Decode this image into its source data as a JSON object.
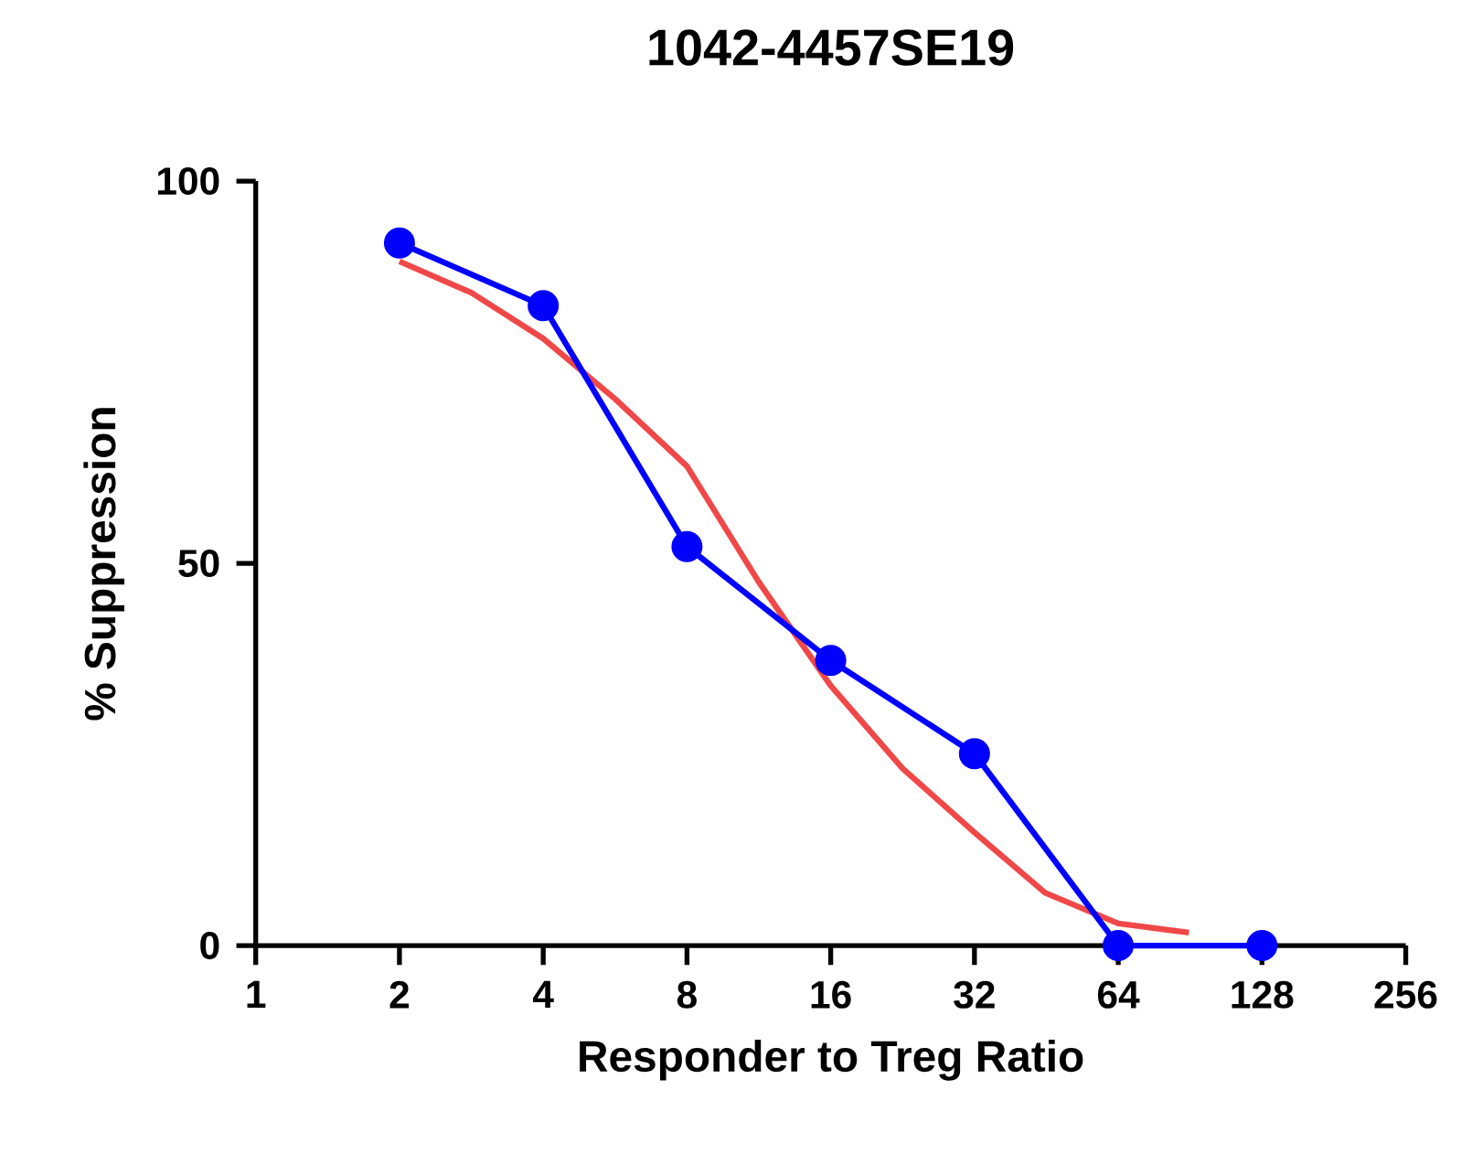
{
  "chart_data": {
    "type": "line",
    "title": "1042-4457SE19",
    "xlabel": "Responder to Treg Ratio",
    "ylabel": "% Suppression",
    "log": "x",
    "xlim": [
      1,
      256
    ],
    "xticks": [
      1,
      2,
      4,
      8,
      16,
      32,
      64,
      128,
      256
    ],
    "ylim": [
      0,
      100
    ],
    "yticks": [
      0,
      50,
      100
    ],
    "grid": false,
    "series": [
      {
        "color": "#f04848",
        "marker": "none",
        "x": [
          2,
          2.83,
          4,
          5.66,
          8,
          11.3,
          16,
          22.6,
          32,
          45,
          64,
          90
        ],
        "values": [
          89.5,
          85.4,
          79.4,
          71.5,
          62.7,
          47.6,
          34,
          23.2,
          14.8,
          6.9,
          2.9,
          1.7
        ]
      },
      {
        "color": "#0000ff",
        "marker": "circle",
        "x": [
          2,
          4,
          8,
          16,
          32,
          64,
          128
        ],
        "values": [
          91.9,
          83.7,
          52.2,
          37.3,
          25.1,
          0,
          0
        ]
      }
    ]
  }
}
